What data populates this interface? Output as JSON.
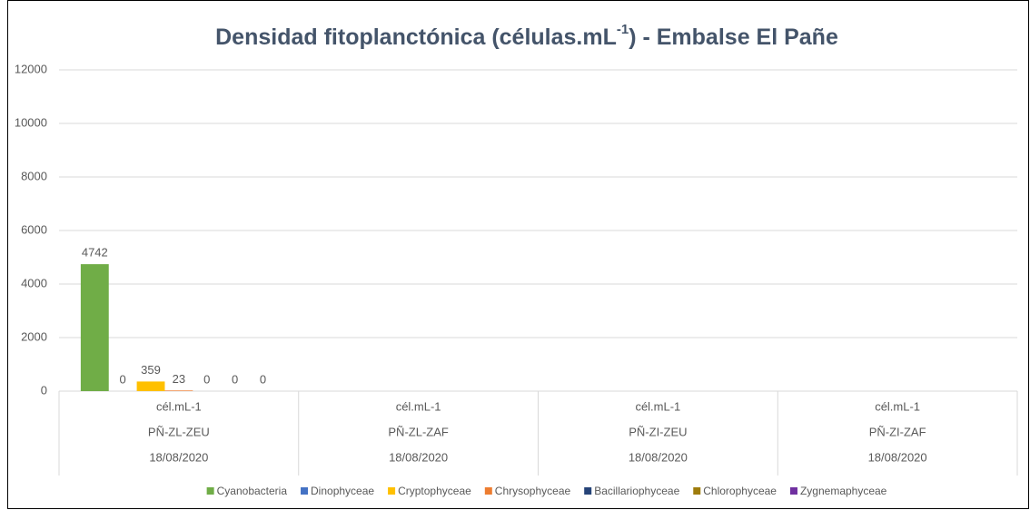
{
  "chart_data": {
    "type": "bar",
    "title": "Densidad fitoplanctónica (células.mL",
    "title_sup": "-1",
    "title_end": ") - Embalse El Pañe",
    "categories": [
      [
        "cél.mL-1",
        "PÑ-ZL-ZEU",
        "18/08/2020"
      ],
      [
        "cél.mL-1",
        "PÑ-ZL-ZAF",
        "18/08/2020"
      ],
      [
        "cél.mL-1",
        "PÑ-ZI-ZEU",
        "18/08/2020"
      ],
      [
        "cél.mL-1",
        "PÑ-ZI-ZAF",
        "18/08/2020"
      ]
    ],
    "series": [
      {
        "name": "Cyanobacteria",
        "color": "#70ad47",
        "values": [
          4742,
          null,
          null,
          null
        ]
      },
      {
        "name": "Dinophyceae",
        "color": "#4472c4",
        "values": [
          0,
          null,
          null,
          null
        ]
      },
      {
        "name": "Cryptophyceae",
        "color": "#ffc000",
        "values": [
          359,
          null,
          null,
          null
        ]
      },
      {
        "name": "Chrysophyceae",
        "color": "#ed7d31",
        "values": [
          23,
          null,
          null,
          null
        ]
      },
      {
        "name": "Bacillariophyceae",
        "color": "#264478",
        "values": [
          0,
          null,
          null,
          null
        ]
      },
      {
        "name": "Chlorophyceae",
        "color": "#9e7c0c",
        "values": [
          0,
          null,
          null,
          null
        ]
      },
      {
        "name": "Zygnemaphyceae",
        "color": "#7030a0",
        "values": [
          0,
          null,
          null,
          null
        ]
      }
    ],
    "ylim": [
      0,
      12000
    ],
    "yticks": [
      0,
      2000,
      4000,
      6000,
      8000,
      10000,
      12000
    ],
    "grid": true,
    "legend": "bottom"
  }
}
